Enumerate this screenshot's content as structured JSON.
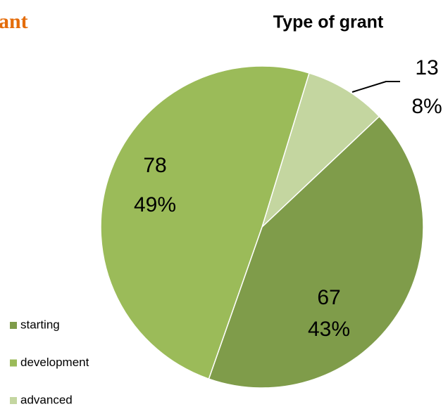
{
  "heading": "ant",
  "chart_data": {
    "type": "pie",
    "title": "Type of grant",
    "categories": [
      "starting",
      "development",
      "advanced"
    ],
    "values": [
      67,
      78,
      13
    ],
    "percentage_labels": [
      "43%",
      "49%",
      "8%"
    ],
    "colors": [
      "#7f9c4a",
      "#9bbb59",
      "#c4d6a0"
    ],
    "legend": "left"
  }
}
